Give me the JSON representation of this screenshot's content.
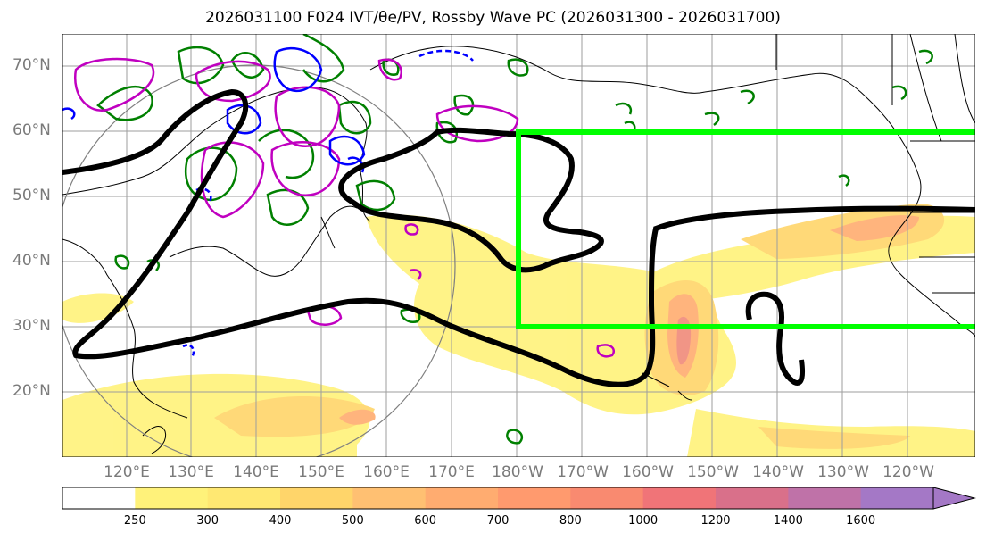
{
  "title": "2026031100 F024 IVT/θe/PV, Rossby Wave PC (2026031300 - 2026031700)",
  "map": {
    "lat_labels": [
      "70°N",
      "60°N",
      "50°N",
      "40°N",
      "30°N",
      "20°N"
    ],
    "lon_labels": [
      "120°E",
      "130°E",
      "140°E",
      "150°E",
      "160°E",
      "170°E",
      "180°W",
      "170°W",
      "160°W",
      "150°W",
      "140°W",
      "130°W",
      "120°W"
    ],
    "highlight_box_color": "#00ff00",
    "wave_contour_color": "#000000",
    "theta_e_color": "#008000",
    "pv_color_positive": "#c000c0",
    "pv_color_negative": "#0000ff"
  },
  "colorbar": {
    "labels": [
      "250",
      "300",
      "400",
      "500",
      "600",
      "700",
      "800",
      "1000",
      "1200",
      "1400",
      "1600"
    ],
    "colors": [
      "#ffffff",
      "#fff27a",
      "#ffe872",
      "#ffd56a",
      "#ffc072",
      "#ffac70",
      "#ff9a6e",
      "#f98a70",
      "#f07478",
      "#d9708a",
      "#bf72a8",
      "#a478c6"
    ]
  }
}
